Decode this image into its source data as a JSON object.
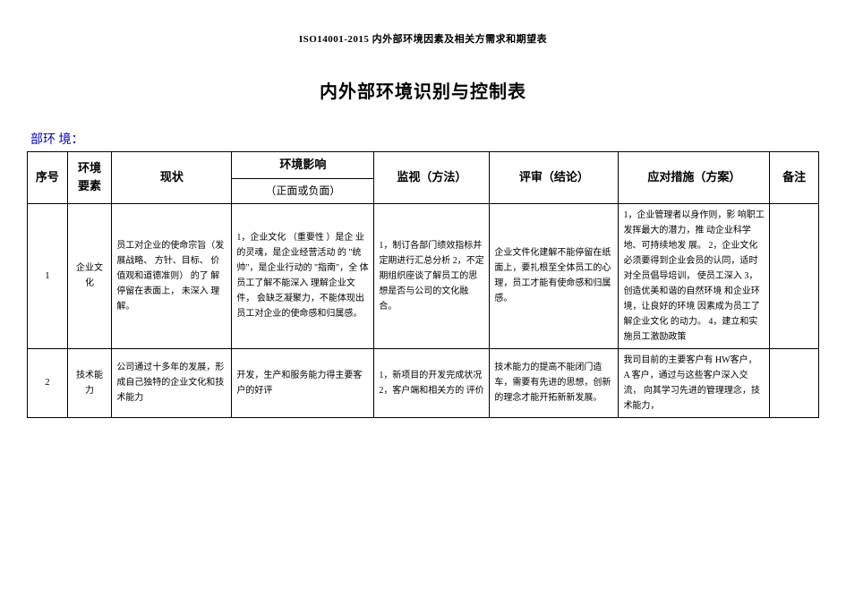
{
  "doc": {
    "header": "ISO14001-2015 内外部环境因素及相关方需求和期望表",
    "title": "内外部环境识别与控制表",
    "section_label": "部环 境："
  },
  "headers": {
    "seq": "序号",
    "factor": "环境要素",
    "status": "现状",
    "impact_top": "环境影响",
    "impact_sub": "（正面或负面）",
    "monitor": "监视（方法）",
    "review": "评审（结论）",
    "measures": "应对措施（方案）",
    "remark": "备注"
  },
  "rows": [
    {
      "seq": "1",
      "factor": "企业文化",
      "status": "员工对企业的使命宗旨（发展战略、 方针、目标、 价值观和道德准则） 的了 解停留在表面上， 未深入 理解。",
      "impact": "1，企业文化 （重要性 ）是企 业的灵魂，是企业经营活动 的 \"统帅\"，是企业行动的 \"指南\"，全 体员工了解不能深入 理解企业文件， 会缺乏凝聚力，不能体现出员工对企业的使命感和归属感。",
      "monitor": "1，制订各部门绩效指标并定期进行汇总分析\n2，不定期组织座谈了解员工的思想是否与公司的文化融合。",
      "review": "企业文件化建解不能停留在纸面上，要扎根至全体员工的心理，员工才能有使命感和归属感。",
      "measures": "1，企业管理者以身作则，影 响职工发挥最大的潜力，推 动企业科学地、可持续地发 展。\n2，企业文化必须要得到企业会员的认同，适时对全员倡导培训， 使员工深入 3，创造优美和谐的自然环境 和企业环境，让良好的环境 因素成为员工了解企业文化 的动力。\n4，建立和实施员工激励政策",
      "remark": ""
    },
    {
      "seq": "2",
      "factor": "技术能力",
      "status": "公司通过十多年的发展，形成自己独特的企业文化和技术能力",
      "impact": "开发，生产和服务能力得主要客户的好评",
      "monitor": "1，新项目的开发完成状况 2，客户端和相关方的 评价",
      "review": "技术能力的提高不能闭门造车，需要有先进的思想，创新的理念才能开拓新新发展。",
      "measures": "我司目前的主要客户有 HW客户， A 客户，通过与这些客户深入交流， 向其学习先进的管理理念，技术能力，",
      "remark": ""
    }
  ]
}
